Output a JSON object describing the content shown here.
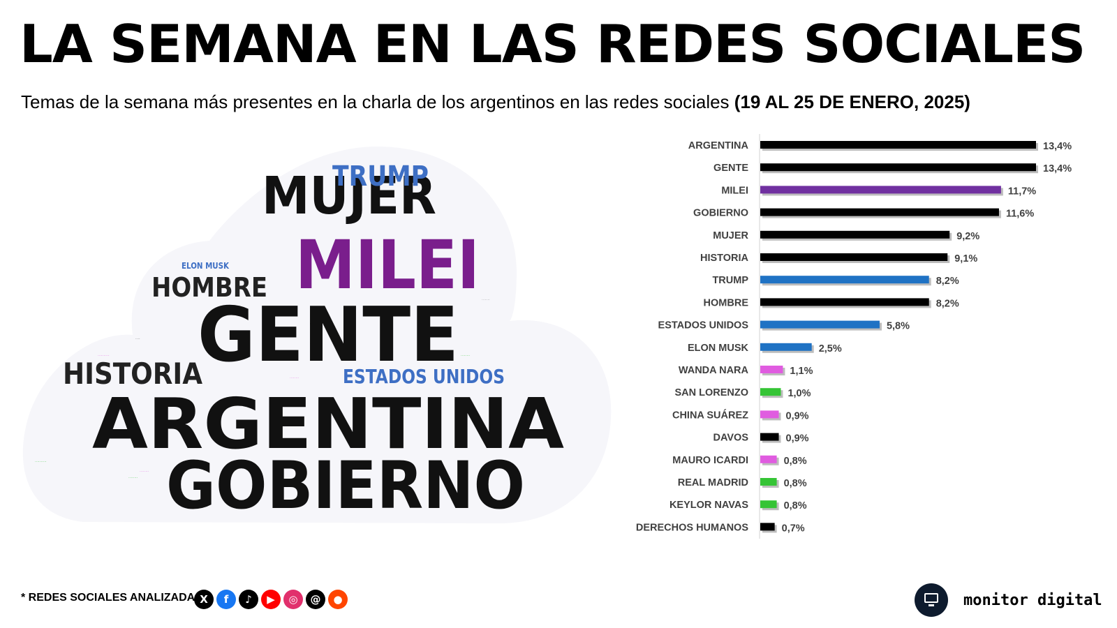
{
  "title": "LA SEMANA EN LAS REDES SOCIALES",
  "subtitle": {
    "text": "Temas de la semana más presentes en la charla de los argentinos en las redes sociales",
    "period": "(19 AL 25 DE ENERO, 2025)"
  },
  "wordcloud": [
    {
      "text": "ARGENTINA",
      "color": "#111111"
    },
    {
      "text": "GOBIERNO",
      "color": "#111111"
    },
    {
      "text": "GENTE",
      "color": "#111111"
    },
    {
      "text": "MILEI",
      "color": "#7a1e8c"
    },
    {
      "text": "MUJER",
      "color": "#111111"
    },
    {
      "text": "HISTORIA",
      "color": "#222222"
    },
    {
      "text": "HOMBRE",
      "color": "#222222"
    },
    {
      "text": "TRUMP",
      "color": "#3e6fc4"
    },
    {
      "text": "ESTADOS UNIDOS",
      "color": "#3e6fc4"
    },
    {
      "text": "ELON MUSK",
      "color": "#3e6fc4"
    }
  ],
  "chart_data": {
    "type": "bar",
    "orientation": "horizontal",
    "categories": [
      "ARGENTINA",
      "GENTE",
      "MILEI",
      "GOBIERNO",
      "MUJER",
      "HISTORIA",
      "TRUMP",
      "HOMBRE",
      "ESTADOS UNIDOS",
      "ELON MUSK",
      "WANDA NARA",
      "SAN LORENZO",
      "CHINA SUÁREZ",
      "DAVOS",
      "MAURO ICARDI",
      "REAL MADRID",
      "KEYLOR NAVAS",
      "DERECHOS HUMANOS"
    ],
    "values": [
      13.4,
      13.4,
      11.7,
      11.6,
      9.2,
      9.1,
      8.2,
      8.2,
      5.8,
      2.5,
      1.1,
      1.0,
      0.9,
      0.9,
      0.8,
      0.8,
      0.8,
      0.7
    ],
    "labels": [
      "13,4%",
      "13,4%",
      "11,7%",
      "11,6%",
      "9,2%",
      "9,1%",
      "8,2%",
      "8,2%",
      "5,8%",
      "2,5%",
      "1,1%",
      "1,0%",
      "0,9%",
      "0,9%",
      "0,8%",
      "0,8%",
      "0,8%",
      "0,7%"
    ],
    "colors": [
      "#000000",
      "#000000",
      "#7030a0",
      "#000000",
      "#000000",
      "#000000",
      "#1f72c4",
      "#000000",
      "#1f72c4",
      "#1f72c4",
      "#e05ce0",
      "#35c435",
      "#e05ce0",
      "#000000",
      "#e05ce0",
      "#35c435",
      "#35c435",
      "#000000"
    ],
    "xlim": [
      0,
      13.4
    ]
  },
  "footer": {
    "label": "* REDES SOCIALES ANALIZADAS",
    "networks": [
      {
        "icon": "x-icon",
        "glyph": "X",
        "color": "#000000"
      },
      {
        "icon": "facebook-icon",
        "glyph": "f",
        "color": "#1877f2"
      },
      {
        "icon": "tiktok-icon",
        "glyph": "♪",
        "color": "#000000"
      },
      {
        "icon": "youtube-icon",
        "glyph": "▶",
        "color": "#ff0000"
      },
      {
        "icon": "instagram-icon",
        "glyph": "◎",
        "color": "#e1306c"
      },
      {
        "icon": "threads-icon",
        "glyph": "@",
        "color": "#000000"
      },
      {
        "icon": "reddit-icon",
        "glyph": "●",
        "color": "#ff4500"
      }
    ],
    "brand": "monitor digital"
  }
}
